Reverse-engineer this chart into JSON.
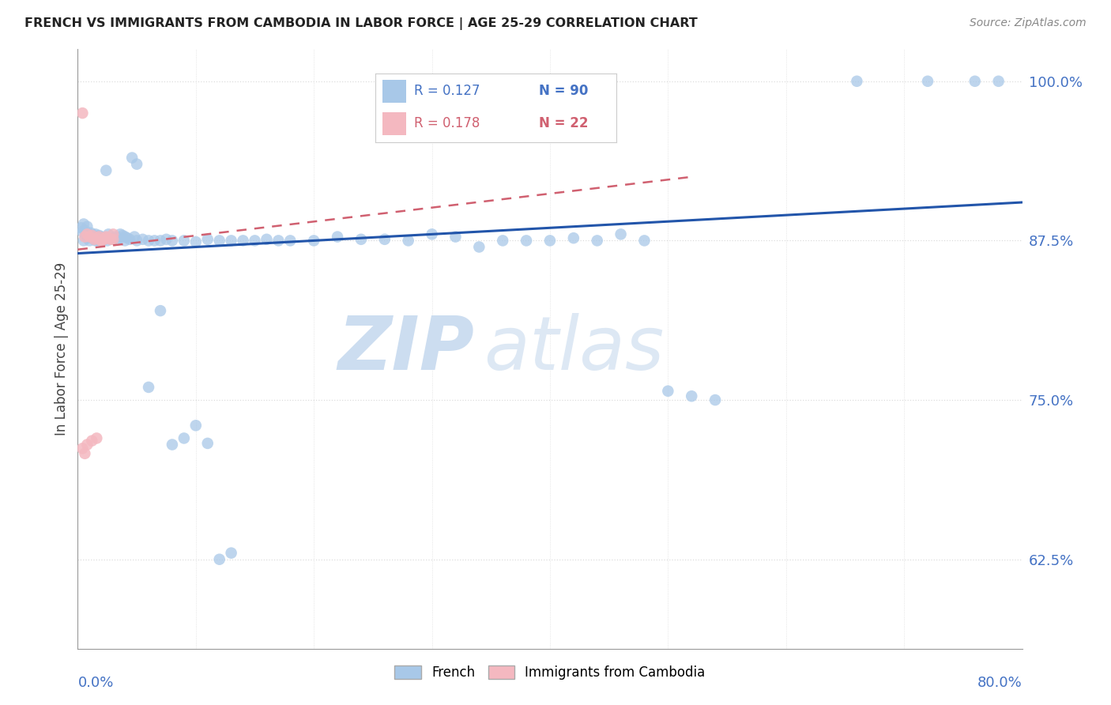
{
  "title": "FRENCH VS IMMIGRANTS FROM CAMBODIA IN LABOR FORCE | AGE 25-29 CORRELATION CHART",
  "source": "Source: ZipAtlas.com",
  "ylabel": "In Labor Force | Age 25-29",
  "right_ytick_vals": [
    1.0,
    0.875,
    0.75,
    0.625
  ],
  "right_ytick_labels": [
    "100.0%",
    "87.5%",
    "75.0%",
    "62.5%"
  ],
  "xmin": 0.0,
  "xmax": 0.8,
  "ymin": 0.555,
  "ymax": 1.025,
  "legend_r_blue": "R = 0.127",
  "legend_n_blue": "N = 90",
  "legend_r_pink": "R = 0.178",
  "legend_n_pink": "N = 22",
  "blue_scatter_color": "#a8c8e8",
  "blue_line_color": "#2255aa",
  "pink_scatter_color": "#f4b8c0",
  "pink_line_color": "#d06070",
  "grid_color": "#dddddd",
  "watermark_color": "#ccddf0",
  "blue_line_y0": 0.865,
  "blue_line_y1": 0.905,
  "pink_line_x0": 0.0,
  "pink_line_x1": 0.52,
  "pink_line_y0": 0.868,
  "pink_line_y1": 0.925,
  "blue_x": [
    0.003,
    0.004,
    0.005,
    0.006,
    0.007,
    0.008,
    0.009,
    0.01,
    0.011,
    0.012,
    0.013,
    0.014,
    0.015,
    0.016,
    0.017,
    0.018,
    0.019,
    0.02,
    0.021,
    0.022,
    0.024,
    0.026,
    0.028,
    0.03,
    0.032,
    0.034,
    0.036,
    0.038,
    0.04,
    0.042,
    0.044,
    0.046,
    0.048,
    0.05,
    0.055,
    0.06,
    0.065,
    0.07,
    0.075,
    0.08,
    0.09,
    0.1,
    0.11,
    0.12,
    0.13,
    0.14,
    0.15,
    0.16,
    0.17,
    0.18,
    0.2,
    0.22,
    0.24,
    0.26,
    0.28,
    0.3,
    0.32,
    0.34,
    0.36,
    0.38,
    0.4,
    0.42,
    0.44,
    0.46,
    0.48,
    0.5,
    0.52,
    0.54,
    0.005,
    0.008,
    0.01,
    0.015,
    0.02,
    0.025,
    0.03,
    0.035,
    0.04,
    0.05,
    0.06,
    0.07,
    0.08,
    0.09,
    0.1,
    0.11,
    0.12,
    0.13,
    0.66,
    0.72,
    0.76,
    0.78
  ],
  "blue_y": [
    0.885,
    0.882,
    0.888,
    0.883,
    0.88,
    0.886,
    0.879,
    0.878,
    0.881,
    0.877,
    0.879,
    0.876,
    0.88,
    0.877,
    0.875,
    0.879,
    0.876,
    0.878,
    0.875,
    0.877,
    0.93,
    0.88,
    0.876,
    0.876,
    0.878,
    0.877,
    0.88,
    0.879,
    0.878,
    0.877,
    0.876,
    0.94,
    0.878,
    0.935,
    0.876,
    0.875,
    0.875,
    0.875,
    0.876,
    0.875,
    0.875,
    0.874,
    0.876,
    0.875,
    0.875,
    0.875,
    0.875,
    0.876,
    0.875,
    0.875,
    0.875,
    0.878,
    0.876,
    0.876,
    0.875,
    0.88,
    0.878,
    0.87,
    0.875,
    0.875,
    0.875,
    0.877,
    0.875,
    0.88,
    0.875,
    0.757,
    0.753,
    0.75,
    0.875,
    0.877,
    0.875,
    0.875,
    0.876,
    0.875,
    0.876,
    0.877,
    0.875,
    0.875,
    0.76,
    0.82,
    0.715,
    0.72,
    0.73,
    0.716,
    0.625,
    0.63,
    1.0,
    1.0,
    1.0,
    1.0
  ],
  "pink_x": [
    0.004,
    0.006,
    0.008,
    0.01,
    0.012,
    0.014,
    0.016,
    0.018,
    0.02,
    0.022,
    0.024,
    0.026,
    0.028,
    0.03,
    0.004,
    0.006,
    0.008,
    0.012,
    0.016,
    0.02,
    0.024,
    0.03
  ],
  "pink_y": [
    0.975,
    0.878,
    0.88,
    0.878,
    0.879,
    0.876,
    0.877,
    0.878,
    0.875,
    0.876,
    0.878,
    0.877,
    0.876,
    0.88,
    0.712,
    0.708,
    0.715,
    0.718,
    0.72,
    0.875,
    0.877,
    0.876
  ]
}
